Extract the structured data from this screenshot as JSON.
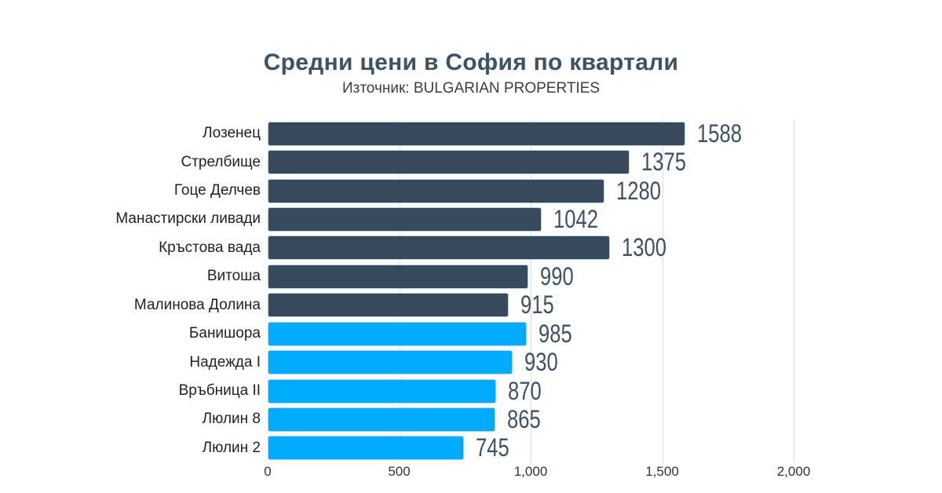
{
  "header": {
    "title": "Средни цени в София по квартали",
    "subtitle": "Източник: BULGARIAN PROPERTIES"
  },
  "chart_data": {
    "type": "bar",
    "orientation": "horizontal",
    "title": "Средни цени в София по квартали",
    "subtitle": "Източник: BULGARIAN PROPERTIES",
    "categories": [
      "Лозенец",
      "Стрелбище",
      "Гоце Делчев",
      "Манастирски ливади",
      "Кръстова вада",
      "Витоша",
      "Малинова Долина",
      "Банишора",
      "Надежда I",
      "Връбница II",
      "Люлин 8",
      "Люлин 2"
    ],
    "values": [
      1588,
      1375,
      1280,
      1042,
      1300,
      990,
      915,
      985,
      930,
      870,
      865,
      745
    ],
    "bar_colors": [
      "#36495D",
      "#36495D",
      "#36495D",
      "#36495D",
      "#36495D",
      "#36495D",
      "#36495D",
      "#00ABFF",
      "#00ABFF",
      "#00ABFF",
      "#00ABFF",
      "#00ABFF"
    ],
    "xlim": [
      0,
      2000
    ],
    "xticks": [
      0,
      500,
      1000,
      1500,
      2000
    ],
    "xtick_labels": [
      "0",
      "500",
      "1,000",
      "1,500",
      "2,000"
    ],
    "grid": "vertical",
    "legend": "none",
    "value_labels": "outside-end"
  },
  "style": {
    "title_color": "#3C5269",
    "subtitle_color": "#3D3D3D",
    "dark_bar_color": "#36495D",
    "light_bar_color": "#00ABFF",
    "bar_border_color": "#B3D1E8",
    "value_label_color": "#3D5166",
    "category_label_color": "#222222",
    "tick_label_color": "#333333",
    "grid_color": "#DCDCDC",
    "background": "#FFFFFF"
  }
}
